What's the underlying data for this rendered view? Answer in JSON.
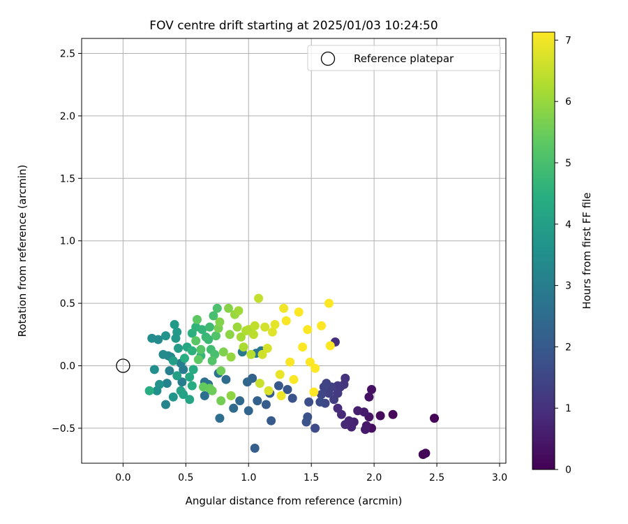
{
  "chart_data": {
    "type": "scatter",
    "title": "FOV centre drift starting at 2025/01/03 10:24:50",
    "xlabel": "Angular distance from reference (arcmin)",
    "ylabel": "Rotation from reference (arcmin)",
    "xlim": [
      -0.33,
      3.05
    ],
    "ylim": [
      -0.78,
      2.62
    ],
    "xticks": [
      0.0,
      0.5,
      1.0,
      1.5,
      2.0,
      2.5,
      3.0
    ],
    "xtick_labels": [
      "0.0",
      "0.5",
      "1.0",
      "1.5",
      "2.0",
      "2.5",
      "3.0"
    ],
    "yticks": [
      -0.5,
      0.0,
      0.5,
      1.0,
      1.5,
      2.0,
      2.5
    ],
    "ytick_labels": [
      "−0.5",
      "0.0",
      "0.5",
      "1.0",
      "1.5",
      "2.0",
      "2.5"
    ],
    "grid": true,
    "legend": {
      "position": "top-right",
      "entries": [
        "Reference platepar"
      ]
    },
    "reference_point": {
      "x": 0.0,
      "y": 0.0,
      "label": "Reference platepar"
    },
    "colorbar": {
      "label": "Hours from first FF file",
      "colormap": "viridis",
      "range": [
        0,
        7.13
      ],
      "ticks": [
        0,
        1,
        2,
        3,
        4,
        5,
        6,
        7
      ],
      "tick_labels": [
        "0",
        "1",
        "2",
        "3",
        "4",
        "5",
        "6",
        "7"
      ]
    },
    "points": [
      [
        2.48,
        -0.42,
        0.05
      ],
      [
        2.41,
        -0.7,
        0.08
      ],
      [
        2.39,
        -0.71,
        0.1
      ],
      [
        2.15,
        -0.39,
        0.15
      ],
      [
        2.05,
        -0.4,
        0.2
      ],
      [
        1.98,
        -0.5,
        0.25
      ],
      [
        1.98,
        -0.19,
        0.3
      ],
      [
        1.96,
        -0.25,
        0.35
      ],
      [
        1.96,
        -0.41,
        0.4
      ],
      [
        1.94,
        -0.48,
        0.45
      ],
      [
        1.93,
        -0.51,
        0.5
      ],
      [
        1.92,
        -0.37,
        0.55
      ],
      [
        1.87,
        -0.36,
        0.6
      ],
      [
        1.84,
        -0.45,
        0.65
      ],
      [
        1.82,
        -0.49,
        0.7
      ],
      [
        1.8,
        -0.44,
        0.75
      ],
      [
        1.77,
        -0.47,
        0.8
      ],
      [
        1.74,
        -0.39,
        0.85
      ],
      [
        1.71,
        -0.34,
        0.9
      ],
      [
        1.69,
        0.19,
        0.95
      ],
      [
        1.77,
        -0.1,
        1.0
      ],
      [
        1.76,
        -0.15,
        1.05
      ],
      [
        1.73,
        -0.17,
        1.1
      ],
      [
        1.71,
        -0.16,
        1.15
      ],
      [
        1.71,
        -0.22,
        1.2
      ],
      [
        1.68,
        -0.27,
        1.25
      ],
      [
        1.66,
        -0.17,
        1.3
      ],
      [
        1.64,
        -0.22,
        1.35
      ],
      [
        1.62,
        -0.14,
        1.4
      ],
      [
        1.6,
        -0.17,
        1.45
      ],
      [
        1.58,
        -0.23,
        1.5
      ],
      [
        1.61,
        -0.3,
        1.55
      ],
      [
        1.57,
        -0.29,
        1.6
      ],
      [
        1.53,
        -0.5,
        1.65
      ],
      [
        1.48,
        -0.29,
        1.7
      ],
      [
        1.47,
        -0.41,
        1.75
      ],
      [
        1.46,
        -0.45,
        1.8
      ],
      [
        1.35,
        -0.26,
        1.85
      ],
      [
        1.31,
        -0.19,
        1.9
      ],
      [
        1.24,
        -0.16,
        1.95
      ],
      [
        1.18,
        -0.44,
        2.0
      ],
      [
        1.17,
        -0.22,
        2.05
      ],
      [
        1.14,
        -0.31,
        2.1
      ],
      [
        1.05,
        -0.66,
        2.15
      ],
      [
        1.07,
        -0.28,
        2.2
      ],
      [
        1.03,
        -0.1,
        2.25
      ],
      [
        1.0,
        -0.36,
        2.3
      ],
      [
        0.99,
        -0.13,
        2.35
      ],
      [
        0.93,
        -0.28,
        2.4
      ],
      [
        0.88,
        -0.34,
        2.45
      ],
      [
        0.82,
        -0.11,
        2.5
      ],
      [
        0.77,
        -0.42,
        2.55
      ],
      [
        0.65,
        -0.24,
        2.6
      ],
      [
        0.65,
        -0.13,
        2.65
      ],
      [
        0.76,
        -0.06,
        2.7
      ],
      [
        0.68,
        -0.15,
        2.75
      ],
      [
        1.06,
        0.1,
        2.8
      ],
      [
        1.1,
        0.12,
        2.85
      ],
      [
        0.95,
        0.11,
        2.9
      ],
      [
        0.48,
        -0.03,
        2.95
      ],
      [
        0.47,
        -0.13,
        3.0
      ],
      [
        0.46,
        0.02,
        3.05
      ],
      [
        0.37,
        -0.04,
        3.1
      ],
      [
        0.35,
        -0.14,
        3.15
      ],
      [
        0.34,
        -0.31,
        3.2
      ],
      [
        0.38,
        0.07,
        3.25
      ],
      [
        0.36,
        0.08,
        3.3
      ],
      [
        0.32,
        0.09,
        3.35
      ],
      [
        0.28,
        0.21,
        3.4
      ],
      [
        0.23,
        0.22,
        3.45
      ],
      [
        0.25,
        -0.03,
        3.5
      ],
      [
        0.27,
        -0.2,
        3.55
      ],
      [
        0.29,
        -0.15,
        3.6
      ],
      [
        0.34,
        0.24,
        3.65
      ],
      [
        0.4,
        -0.25,
        3.7
      ],
      [
        0.42,
        0.22,
        3.75
      ],
      [
        0.43,
        0.27,
        3.8
      ],
      [
        0.41,
        0.33,
        3.85
      ],
      [
        0.44,
        0.14,
        3.9
      ],
      [
        0.4,
        0.04,
        3.95
      ],
      [
        0.43,
        -0.08,
        4.0
      ],
      [
        0.46,
        -0.2,
        4.05
      ],
      [
        0.48,
        -0.23,
        4.1
      ],
      [
        0.53,
        -0.27,
        4.15
      ],
      [
        0.51,
        0.15,
        4.2
      ],
      [
        0.53,
        -0.09,
        4.25
      ],
      [
        0.56,
        -0.03,
        4.3
      ],
      [
        0.55,
        -0.16,
        4.35
      ],
      [
        0.21,
        -0.2,
        4.4
      ],
      [
        0.49,
        0.06,
        4.45
      ],
      [
        0.55,
        0.26,
        4.5
      ],
      [
        0.55,
        0.12,
        4.55
      ],
      [
        0.58,
        0.31,
        4.6
      ],
      [
        0.63,
        0.29,
        4.65
      ],
      [
        0.62,
        0.08,
        4.7
      ],
      [
        0.66,
        0.23,
        4.75
      ],
      [
        0.68,
        0.21,
        4.8
      ],
      [
        0.69,
        0.31,
        4.85
      ],
      [
        0.7,
        0.13,
        4.9
      ],
      [
        0.72,
        0.4,
        4.95
      ],
      [
        0.73,
        0.09,
        5.0
      ],
      [
        0.75,
        0.46,
        5.05
      ],
      [
        0.74,
        0.24,
        5.1
      ],
      [
        0.71,
        0.04,
        5.15
      ],
      [
        0.62,
        0.13,
        5.2
      ],
      [
        0.58,
        0.2,
        5.25
      ],
      [
        0.59,
        0.37,
        5.3
      ],
      [
        0.6,
        0.05,
        5.35
      ],
      [
        0.64,
        -0.17,
        5.4
      ],
      [
        0.69,
        -0.18,
        5.45
      ],
      [
        0.71,
        -0.2,
        5.5
      ],
      [
        0.78,
        -0.04,
        5.55
      ],
      [
        0.78,
        -0.28,
        5.6
      ],
      [
        0.76,
        0.3,
        5.65
      ],
      [
        0.8,
        0.11,
        5.7
      ],
      [
        0.77,
        0.35,
        5.75
      ],
      [
        0.84,
        0.46,
        5.8
      ],
      [
        0.85,
        0.25,
        5.85
      ],
      [
        0.86,
        -0.24,
        5.9
      ],
      [
        0.86,
        0.07,
        5.95
      ],
      [
        0.89,
        0.41,
        6.0
      ],
      [
        0.91,
        0.31,
        6.05
      ],
      [
        0.92,
        0.44,
        6.1
      ],
      [
        0.94,
        0.23,
        6.15
      ],
      [
        0.96,
        0.15,
        6.2
      ],
      [
        0.98,
        0.28,
        6.25
      ],
      [
        1.0,
        0.29,
        6.3
      ],
      [
        1.02,
        0.09,
        6.35
      ],
      [
        1.04,
        0.25,
        6.4
      ],
      [
        1.05,
        0.32,
        6.45
      ],
      [
        1.08,
        0.54,
        6.5
      ],
      [
        1.09,
        -0.14,
        6.55
      ],
      [
        1.11,
        0.09,
        6.6
      ],
      [
        1.13,
        0.31,
        6.65
      ],
      [
        1.15,
        0.14,
        6.7
      ],
      [
        1.16,
        -0.2,
        6.75
      ],
      [
        1.19,
        0.27,
        6.8
      ],
      [
        1.21,
        0.33,
        6.85
      ],
      [
        1.25,
        -0.07,
        6.9
      ],
      [
        1.26,
        -0.24,
        6.95
      ],
      [
        1.28,
        0.46,
        7.0
      ],
      [
        1.3,
        0.36,
        7.05
      ],
      [
        1.33,
        0.03,
        7.08
      ],
      [
        1.36,
        -0.11,
        7.1
      ],
      [
        1.4,
        0.43,
        7.12
      ],
      [
        1.43,
        0.15,
        7.12
      ],
      [
        1.47,
        0.29,
        7.12
      ],
      [
        1.49,
        0.03,
        7.13
      ],
      [
        1.52,
        -0.21,
        7.13
      ],
      [
        1.53,
        -0.02,
        7.13
      ],
      [
        1.58,
        0.32,
        7.13
      ],
      [
        1.64,
        0.5,
        7.13
      ],
      [
        1.65,
        0.16,
        7.13
      ]
    ]
  }
}
